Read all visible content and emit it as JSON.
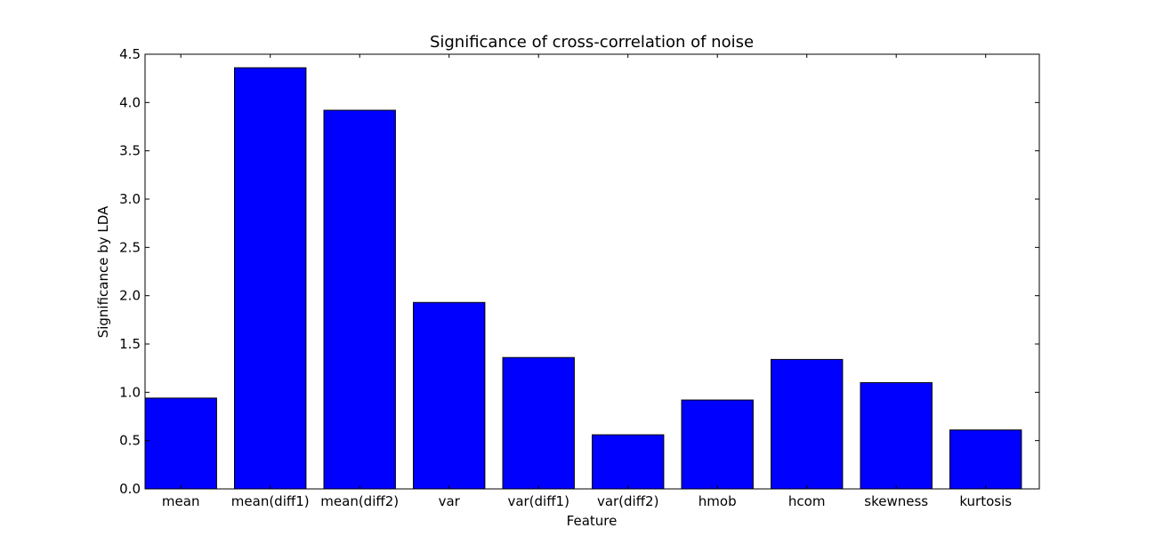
{
  "chart_data": {
    "type": "bar",
    "title": "Significance of cross-correlation of noise",
    "xlabel": "Feature",
    "ylabel": "Significance by LDA",
    "categories": [
      "mean",
      "mean(diff1)",
      "mean(diff2)",
      "var",
      "var(diff1)",
      "var(diff2)",
      "hmob",
      "hcom",
      "skewness",
      "kurtosis"
    ],
    "values": [
      0.94,
      4.36,
      3.92,
      1.93,
      1.36,
      0.56,
      0.92,
      1.34,
      1.1,
      0.61
    ],
    "ylim": [
      0,
      4.5
    ],
    "yticks": [
      "0.0",
      "0.5",
      "1.0",
      "1.5",
      "2.0",
      "2.5",
      "3.0",
      "3.5",
      "4.0",
      "4.5"
    ],
    "bar_color": "#0000ff",
    "grid": false
  }
}
